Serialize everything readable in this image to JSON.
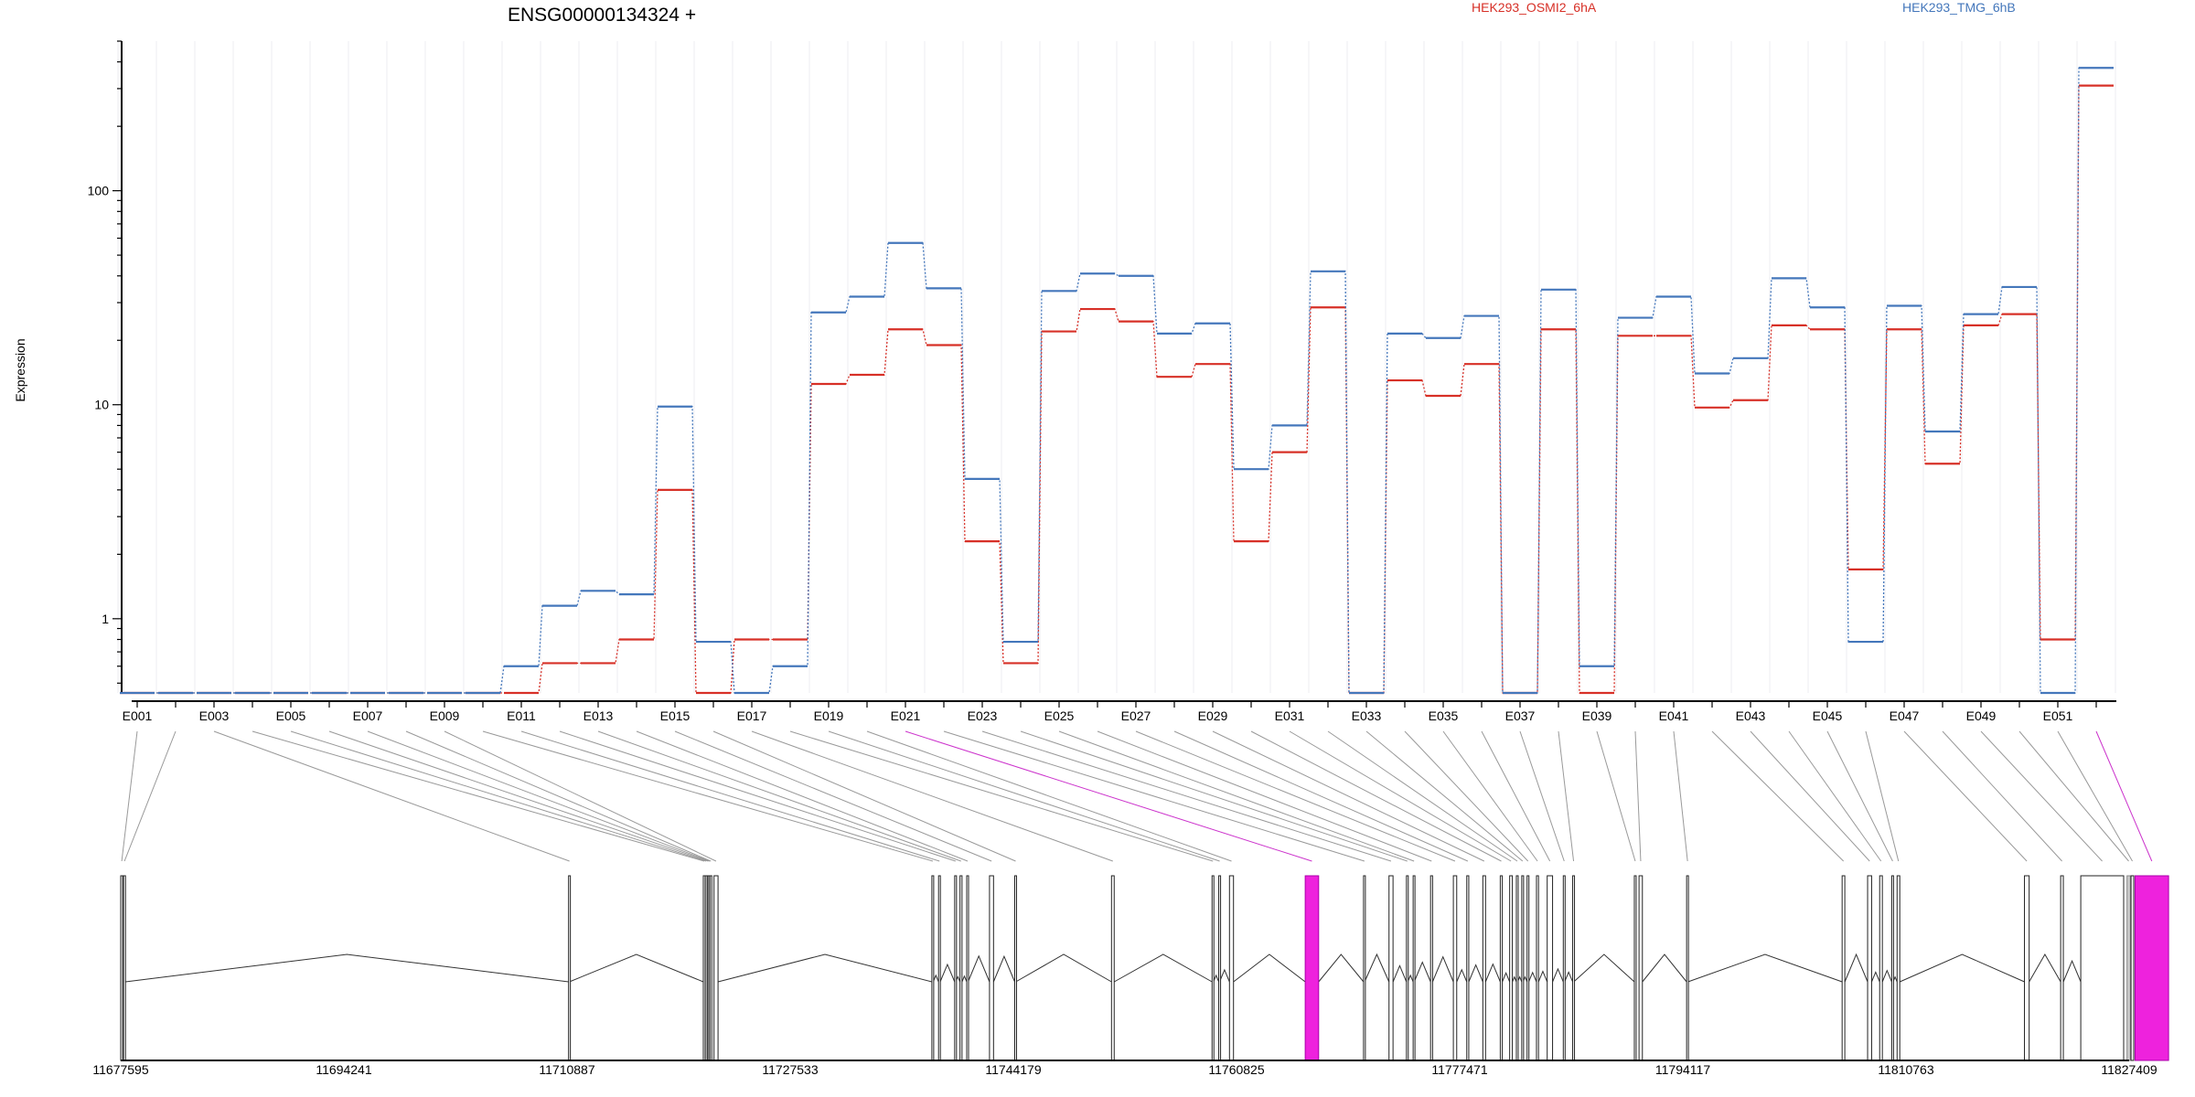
{
  "chart_data": {
    "type": "line",
    "title": "ENSG00000134324 +",
    "ylabel": "Expression",
    "xlabel": "",
    "yscale": "log",
    "ylim": [
      0.45,
      500
    ],
    "yticks": [
      1,
      10,
      100
    ],
    "grid": "vertical",
    "legend_placement": "top-right",
    "colors": {
      "series_a": "#d73027",
      "series_b": "#4477bb",
      "highlight": "#ee22dd",
      "grey_exon": "#cccccc"
    },
    "categories": [
      "E001",
      "E002",
      "E003",
      "E004",
      "E005",
      "E006",
      "E007",
      "E008",
      "E009",
      "E010",
      "E011",
      "E012",
      "E013",
      "E014",
      "E015",
      "E016",
      "E017",
      "E018",
      "E019",
      "E020",
      "E021",
      "E022",
      "E023",
      "E024",
      "E025",
      "E026",
      "E027",
      "E028",
      "E029",
      "E030",
      "E031",
      "E032",
      "E033",
      "E034",
      "E035",
      "E036",
      "E037",
      "E038",
      "E039",
      "E040",
      "E041",
      "E042",
      "E043",
      "E044",
      "E045",
      "E046",
      "E047",
      "E048",
      "E049",
      "E050",
      "E051",
      "E052"
    ],
    "tick_labels": [
      "E001",
      "E003",
      "E005",
      "E007",
      "E009",
      "E011",
      "E013",
      "E015",
      "E017",
      "E019",
      "E021",
      "E023",
      "E025",
      "E027",
      "E029",
      "E031",
      "E033",
      "E035",
      "E037",
      "E039",
      "E041",
      "E043",
      "E045",
      "E047",
      "E049",
      "E051"
    ],
    "series": [
      {
        "name": "HEK293_OSMI2_6hA",
        "color": "#d73027",
        "values": [
          0.45,
          0.45,
          0.45,
          0.45,
          0.45,
          0.45,
          0.45,
          0.45,
          0.45,
          0.45,
          0.45,
          0.62,
          0.62,
          0.8,
          4.0,
          0.45,
          0.8,
          0.8,
          12.5,
          13.8,
          22.5,
          19.0,
          2.3,
          0.62,
          22.0,
          28.0,
          24.5,
          13.5,
          15.5,
          2.3,
          6.0,
          28.5,
          0.45,
          13.0,
          11.0,
          15.5,
          0.45,
          22.5,
          0.45,
          21.0,
          21.0,
          9.7,
          10.5,
          23.5,
          22.5,
          1.7,
          22.5,
          5.3,
          23.5,
          26.5,
          0.8,
          310
        ]
      },
      {
        "name": "HEK293_TMG_6hB",
        "color": "#4477bb",
        "values": [
          0.45,
          0.45,
          0.45,
          0.45,
          0.45,
          0.45,
          0.45,
          0.45,
          0.45,
          0.45,
          0.6,
          1.15,
          1.35,
          1.3,
          9.8,
          0.78,
          0.45,
          0.6,
          27.0,
          32.0,
          57.0,
          35.0,
          4.5,
          0.78,
          34.0,
          41.0,
          40.0,
          21.5,
          24.0,
          5.0,
          8.0,
          42.0,
          0.45,
          21.5,
          20.5,
          26.0,
          0.45,
          34.5,
          0.6,
          25.5,
          32.0,
          14.0,
          16.5,
          39.0,
          28.5,
          0.78,
          29.0,
          7.5,
          26.5,
          35.5,
          0.45,
          375
        ]
      }
    ],
    "gene_track": {
      "coordinate_labels": [
        "11677595",
        "11694241",
        "11710887",
        "11727533",
        "11744179",
        "11760825",
        "11777471",
        "11794117",
        "11810763",
        "11827409"
      ],
      "range": [
        11677595,
        11827409
      ],
      "highlighted_exons": [
        "E021",
        "E052"
      ],
      "grey_exons": [
        "E050"
      ]
    }
  }
}
